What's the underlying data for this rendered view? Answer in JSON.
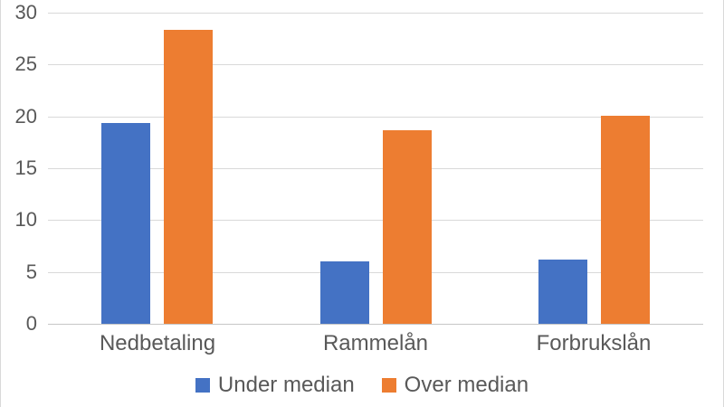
{
  "chart_data": {
    "type": "bar",
    "title": "",
    "xlabel": "",
    "ylabel": "",
    "categories": [
      "Nedbetaling",
      "Rammelån",
      "Forbrukslån"
    ],
    "series": [
      {
        "name": "Under median",
        "color": "#4472C4",
        "values": [
          19.4,
          6.0,
          6.2
        ]
      },
      {
        "name": "Over median",
        "color": "#ED7D31",
        "values": [
          28.3,
          18.7,
          20.1
        ]
      }
    ],
    "ylim": [
      0,
      30
    ],
    "ytick_step": 5,
    "ytick_labels": [
      "0",
      "5",
      "10",
      "15",
      "20",
      "25",
      "30"
    ],
    "grid": "horizontal",
    "legend_position": "bottom"
  },
  "styles": {
    "text_color": "#595959",
    "gridline_color": "#D9D9D9",
    "axis_line_color": "#C6C6C6",
    "background": "#FFFFFF"
  }
}
